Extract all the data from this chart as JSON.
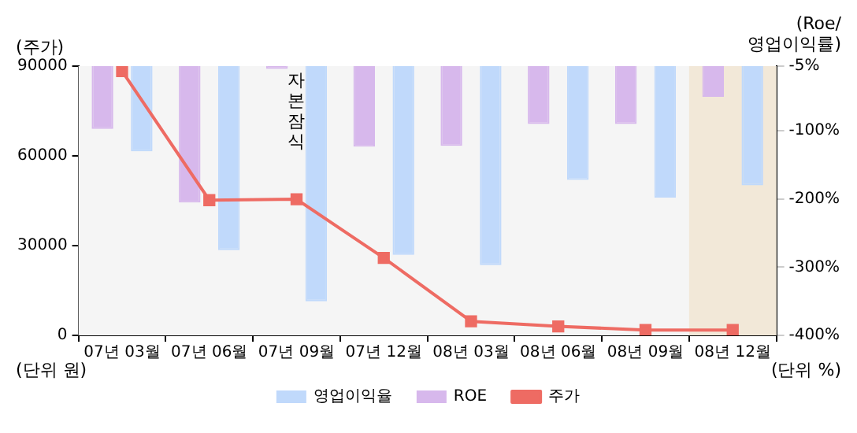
{
  "chart_data": {
    "type": "bar",
    "categories": [
      "07년 03월",
      "07년 06월",
      "07년 09월",
      "07년 12월",
      "08년 03월",
      "08년 06월",
      "08년 09월",
      "08년 12월"
    ],
    "series": [
      {
        "name": "ROE",
        "axis": "y2",
        "color": "#d7b8ec",
        "values": [
          -97,
          -205,
          -9,
          -123,
          -122,
          -90,
          -90,
          -50
        ]
      },
      {
        "name": "영업이익율",
        "axis": "y2",
        "color": "#c0d9fb",
        "values": [
          -130,
          -275,
          -350,
          -282,
          -297,
          -172,
          -198,
          -180
        ]
      },
      {
        "name": "주가",
        "type": "line",
        "axis": "y",
        "color": "#ee6b63",
        "marker": "square",
        "values": [
          88300,
          45200,
          45500,
          25900,
          4700,
          3000,
          1800,
          1800
        ]
      }
    ],
    "ylabel": "(주가)",
    "y2label": "(Roe/ 영업이익률)",
    "ylim": [
      0,
      90000
    ],
    "yticks": [
      0,
      30000,
      60000,
      90000
    ],
    "y2lim": [
      -400,
      -5
    ],
    "y2ticks": [
      {
        "value": -5,
        "label": "-5%"
      },
      {
        "value": -100,
        "label": "-100%"
      },
      {
        "value": -200,
        "label": "-200%"
      },
      {
        "value": -300,
        "label": "-300%"
      },
      {
        "value": -400,
        "label": "-400%"
      }
    ],
    "grid": false,
    "legend": "bottom",
    "bands": [
      {
        "axis": "x",
        "from": "08년 12월",
        "to": "08년 12월",
        "color": "#f2e8d8"
      }
    ],
    "annotations": [
      "(단위 원)",
      "(단위 %)",
      "자본잠식"
    ]
  }
}
